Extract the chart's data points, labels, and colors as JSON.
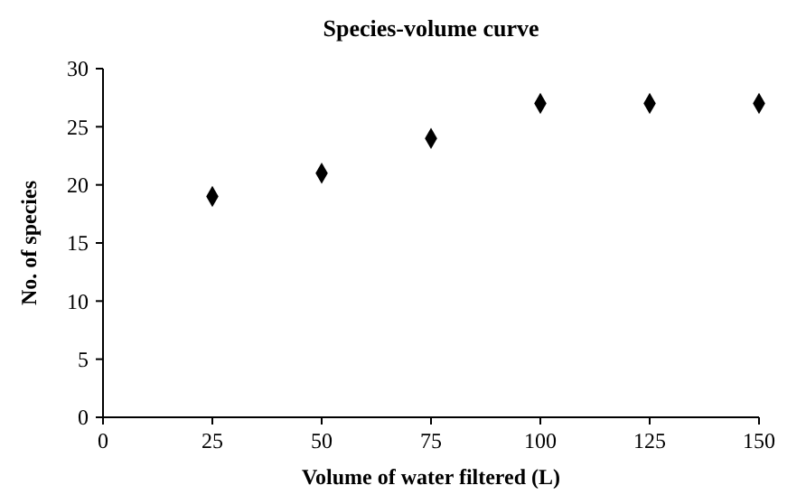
{
  "chart_data": {
    "type": "scatter",
    "title": "Species-volume curve",
    "xlabel": "Volume of water filtered (L)",
    "ylabel": "No. of species",
    "x": [
      25,
      50,
      75,
      100,
      125,
      150
    ],
    "series": [
      {
        "color": "#000000",
        "values": [
          19,
          21,
          24,
          27,
          27,
          27
        ]
      }
    ],
    "xlim": [
      0,
      150
    ],
    "xticks": [
      0,
      25,
      50,
      75,
      100,
      125,
      150
    ],
    "ylim": [
      0,
      30
    ],
    "yticks": [
      0,
      5,
      10,
      15,
      20,
      25,
      30
    ],
    "marker": "diamond",
    "grid": false
  }
}
